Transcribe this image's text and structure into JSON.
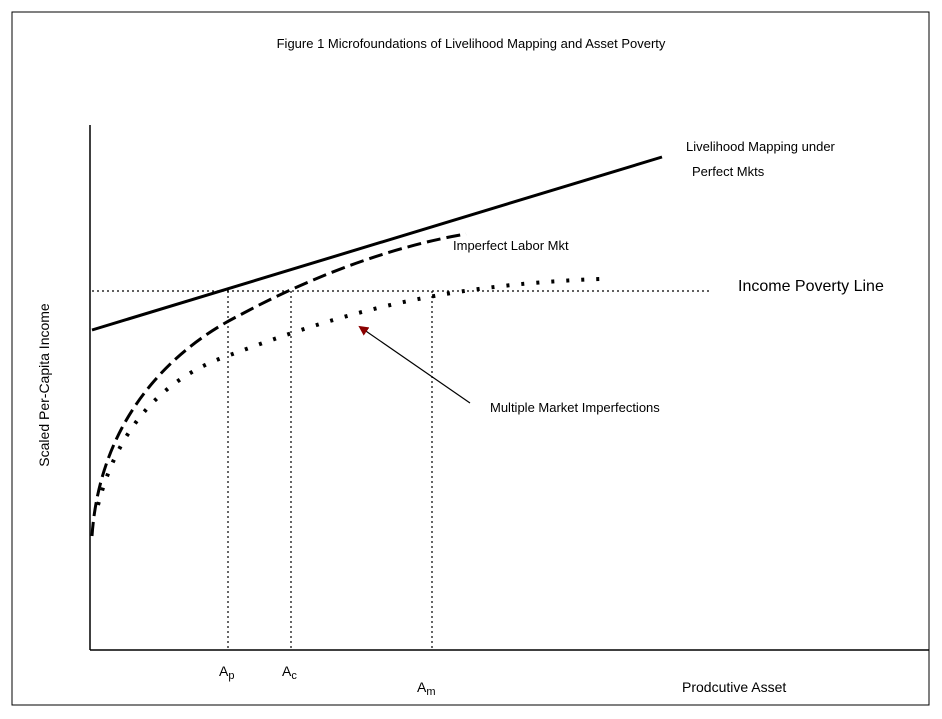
{
  "title": "Figure 1 Microfoundations of Livelihood Mapping and Asset Poverty",
  "y_axis_label": "Scaled Per-Capita Income",
  "x_axis_label": "Prodcutive Asset",
  "curve_labels": {
    "perfect_line1": "Livelihood Mapping under",
    "perfect_line2": "Perfect Mkts",
    "imperfect_labor": "Imperfect Labor Mkt",
    "poverty_line": "Income Poverty Line",
    "multiple": "Multiple Market Imperfections"
  },
  "markers": [
    {
      "letter": "A",
      "subscript": "p"
    },
    {
      "letter": "A",
      "subscript": "c"
    },
    {
      "letter": "A",
      "subscript": "m"
    }
  ]
}
